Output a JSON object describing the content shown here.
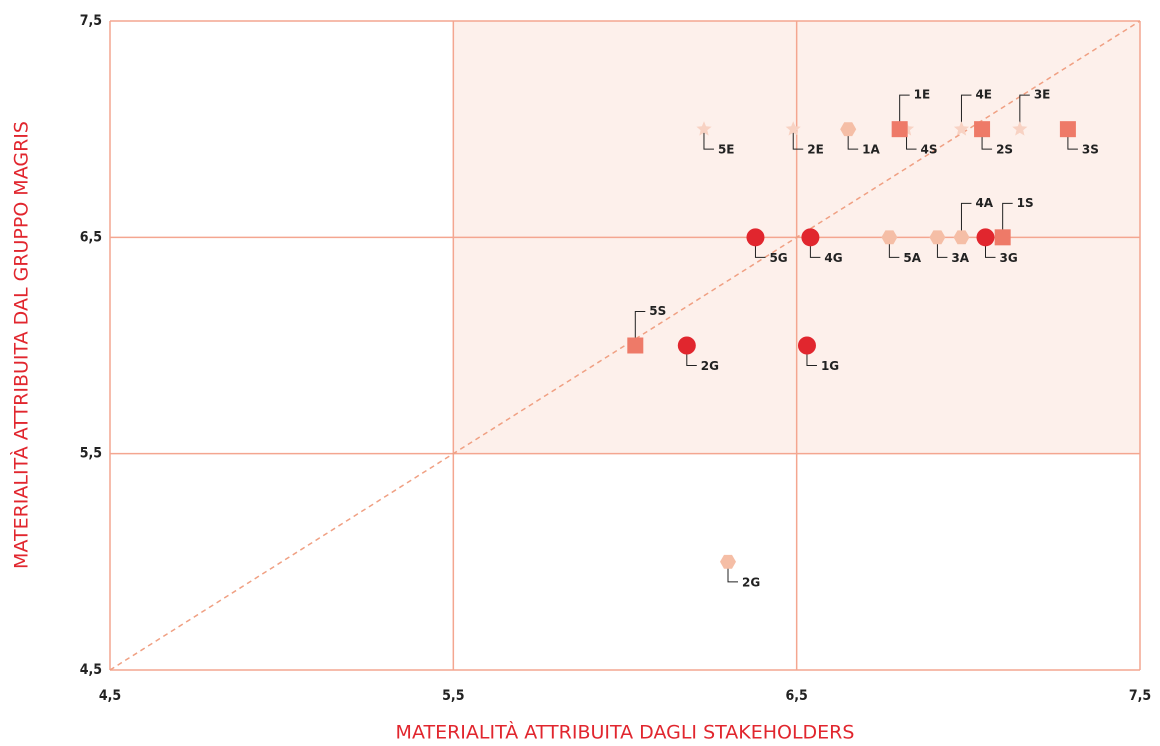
{
  "chart_data": {
    "type": "scatter",
    "xlabel": "MATERIALITÀ ATTRIBUITA DAGLI STAKEHOLDERS",
    "ylabel": "MATERIALITÀ ATTRIBUITA DAL GRUPPO MAGRIS",
    "xlim": [
      4.5,
      7.5
    ],
    "ylim": [
      4.5,
      7.5
    ],
    "xticks": [
      {
        "value": 4.5,
        "label": "4,5"
      },
      {
        "value": 5.5,
        "label": "5,5"
      },
      {
        "value": 6.5,
        "label": "6,5"
      },
      {
        "value": 7.5,
        "label": "7,5"
      }
    ],
    "yticks": [
      {
        "value": 4.5,
        "label": "4,5"
      },
      {
        "value": 5.5,
        "label": "5,5"
      },
      {
        "value": 6.5,
        "label": "6,5"
      },
      {
        "value": 7.5,
        "label": "7,5"
      }
    ],
    "grid": true,
    "series": [
      {
        "marker": "star",
        "color": "#f8d2c3",
        "x": [
          6.23,
          6.49,
          6.82,
          6.98,
          7.15
        ],
        "y": [
          7.0,
          7.0,
          7.0,
          7.0,
          7.0
        ],
        "labels": [
          "5E",
          "2E",
          "4S",
          "4E",
          "3E"
        ]
      },
      {
        "marker": "hexagon",
        "color": "#f5bea6",
        "x": [
          6.65,
          6.77,
          6.91,
          6.98,
          6.3
        ],
        "y": [
          7.0,
          6.5,
          6.5,
          6.5,
          5.0
        ],
        "labels": [
          "1A",
          "5A",
          "3A",
          "4A",
          "2G"
        ]
      },
      {
        "marker": "square",
        "color": "#ee7a68",
        "x": [
          6.8,
          7.04,
          7.29,
          7.1,
          6.03
        ],
        "y": [
          7.0,
          7.0,
          7.0,
          6.5,
          6.0
        ],
        "labels": [
          "1E",
          "2S",
          "3S",
          "1S",
          "5S"
        ]
      },
      {
        "marker": "circle",
        "color": "#e1262e",
        "x": [
          6.38,
          6.54,
          7.05,
          6.18,
          6.53
        ],
        "y": [
          6.5,
          6.5,
          6.5,
          6.0,
          6.0
        ],
        "labels": [
          "5G",
          "4G",
          "3G",
          "2G",
          "1G"
        ]
      }
    ]
  }
}
